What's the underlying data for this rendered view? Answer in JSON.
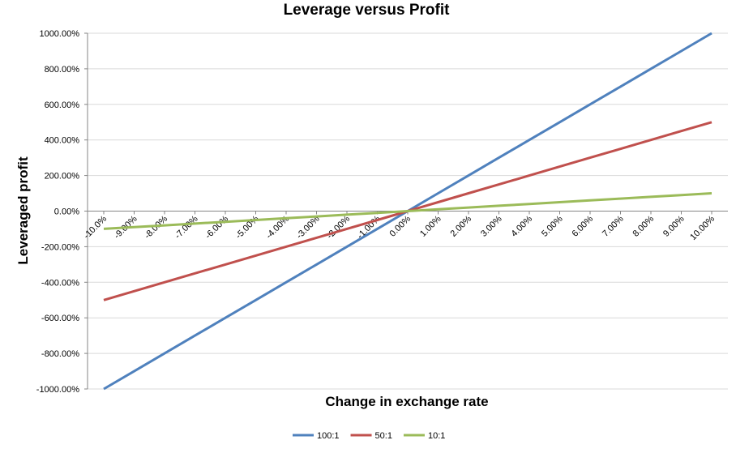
{
  "chart_data": {
    "type": "line",
    "title": "Leverage versus Profit",
    "xlabel": "Change in exchange rate",
    "ylabel": "Leveraged profit",
    "x_ticks": [
      "-10.0%",
      "-9.00%",
      "-8.00%",
      "-7.00%",
      "-6.00%",
      "-5.00%",
      "-4.00%",
      "-3.00%",
      "-2.00%",
      "-1.00%",
      "0.00%",
      "1.00%",
      "2.00%",
      "3.00%",
      "4.00%",
      "5.00%",
      "6.00%",
      "7.00%",
      "8.00%",
      "9.00%",
      "10.00%"
    ],
    "x": [
      -10,
      -9,
      -8,
      -7,
      -6,
      -5,
      -4,
      -3,
      -2,
      -1,
      0,
      1,
      2,
      3,
      4,
      5,
      6,
      7,
      8,
      9,
      10
    ],
    "y_ticks": [
      "1000.00%",
      "800.00%",
      "600.00%",
      "400.00%",
      "200.00%",
      "0.00%",
      "-200.00%",
      "-400.00%",
      "-600.00%",
      "-800.00%",
      "-1000.00%"
    ],
    "ylim": [
      -1000,
      1000
    ],
    "grid": true,
    "legend_position": "bottom",
    "series": [
      {
        "name": "100:1",
        "color": "#4F81BD",
        "values": [
          -1000,
          -900,
          -800,
          -700,
          -600,
          -500,
          -400,
          -300,
          -200,
          -100,
          0,
          100,
          200,
          300,
          400,
          500,
          600,
          700,
          800,
          900,
          1000
        ]
      },
      {
        "name": "50:1",
        "color": "#C0504D",
        "values": [
          -500,
          -450,
          -400,
          -350,
          -300,
          -250,
          -200,
          -150,
          -100,
          -50,
          0,
          50,
          100,
          150,
          200,
          250,
          300,
          350,
          400,
          450,
          500
        ]
      },
      {
        "name": "10:1",
        "color": "#9BBB59",
        "values": [
          -100,
          -90,
          -80,
          -70,
          -60,
          -50,
          -40,
          -30,
          -20,
          -10,
          0,
          10,
          20,
          30,
          40,
          50,
          60,
          70,
          80,
          90,
          100
        ]
      }
    ]
  }
}
